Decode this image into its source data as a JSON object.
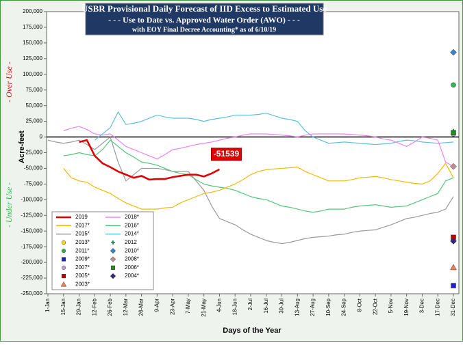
{
  "chart_data": {
    "type": "line",
    "title": [
      "USBR Provisional Daily Forecast of IID Excess to Estimated Use",
      "- - - Use to Date vs. Approved Water Order (AWO) - - -",
      "with EOY Final Decree Accounting* as of  6/10/19"
    ],
    "xlabel": "Days of the Year",
    "ylabel": "Acre-feet",
    "over_label": "- Over Use -",
    "under_label": "- Under Use -",
    "xlim": [
      0,
      364
    ],
    "ylim": [
      -250000,
      200000
    ],
    "xticks": [
      {
        "value": 0,
        "label": "1-Jan"
      },
      {
        "value": 14,
        "label": "15-Jan"
      },
      {
        "value": 28,
        "label": "29-Jan"
      },
      {
        "value": 42,
        "label": "12-Feb"
      },
      {
        "value": 56,
        "label": "26-Feb"
      },
      {
        "value": 70,
        "label": "12-Mar"
      },
      {
        "value": 84,
        "label": "26-Mar"
      },
      {
        "value": 98,
        "label": "9-Apr"
      },
      {
        "value": 112,
        "label": "23-Apr"
      },
      {
        "value": 126,
        "label": "7-May"
      },
      {
        "value": 140,
        "label": "21-May"
      },
      {
        "value": 154,
        "label": "4-Jun"
      },
      {
        "value": 168,
        "label": "18-Jun"
      },
      {
        "value": 182,
        "label": "2-Jul"
      },
      {
        "value": 196,
        "label": "16-Jul"
      },
      {
        "value": 210,
        "label": "30-Jul"
      },
      {
        "value": 224,
        "label": "13-Aug"
      },
      {
        "value": 238,
        "label": "27-Aug"
      },
      {
        "value": 252,
        "label": "10-Sep"
      },
      {
        "value": 266,
        "label": "24-Sep"
      },
      {
        "value": 280,
        "label": "8-Oct"
      },
      {
        "value": 294,
        "label": "22-Oct"
      },
      {
        "value": 308,
        "label": "5-Nov"
      },
      {
        "value": 322,
        "label": "19-Nov"
      },
      {
        "value": 336,
        "label": "3-Dec"
      },
      {
        "value": 350,
        "label": "17-Dec"
      },
      {
        "value": 364,
        "label": "31-Dec"
      }
    ],
    "yticks": [
      {
        "value": 200000,
        "label": "200,000"
      },
      {
        "value": 175000,
        "label": "175,000"
      },
      {
        "value": 150000,
        "label": "150,000"
      },
      {
        "value": 125000,
        "label": "125,000"
      },
      {
        "value": 100000,
        "label": "100,000"
      },
      {
        "value": 75000,
        "label": "75,000"
      },
      {
        "value": 50000,
        "label": "50,000"
      },
      {
        "value": 25000,
        "label": "25,000"
      },
      0,
      {
        "value": -25000,
        "label": "-25,000"
      },
      {
        "value": -50000,
        "label": "-50,000"
      },
      {
        "value": -75000,
        "label": "-75,000"
      },
      {
        "value": -100000,
        "label": "-100,000"
      },
      {
        "value": -125000,
        "label": "-125,000"
      },
      {
        "value": -150000,
        "label": "-150,000"
      },
      {
        "value": -175000,
        "label": "-175,000"
      },
      {
        "value": -200000,
        "label": "-200,000"
      },
      {
        "value": -225000,
        "label": "-225,000"
      },
      {
        "value": -250000,
        "label": "-250,000"
      }
    ],
    "x": [
      0,
      7,
      14,
      21,
      28,
      35,
      42,
      49,
      56,
      63,
      70,
      77,
      84,
      91,
      98,
      105,
      112,
      119,
      126,
      133,
      140,
      147,
      154,
      161,
      168,
      175,
      182,
      189,
      196,
      203,
      210,
      217,
      224,
      231,
      238,
      245,
      252,
      259,
      266,
      273,
      280,
      287,
      294,
      301,
      308,
      315,
      322,
      329,
      336,
      343,
      350,
      357,
      364
    ],
    "series": [
      {
        "name": "2019",
        "color": "#e00000",
        "values": [
          null,
          null,
          null,
          null,
          -8000,
          -5000,
          -30000,
          -42000,
          -48000,
          -55000,
          -60000,
          -65000,
          -62000,
          -68000,
          -67000,
          -67000,
          -64000,
          -62000,
          -60000,
          -60000,
          -63000,
          -58000,
          -51539,
          null,
          null,
          null,
          null,
          null,
          null,
          null,
          null,
          null,
          null,
          null,
          null,
          null,
          null,
          null,
          null,
          null,
          null,
          null,
          null,
          null,
          null,
          null,
          null,
          null,
          null,
          null,
          null,
          null,
          null
        ]
      },
      {
        "name": "2018*",
        "color": "#ee82ee",
        "values": [
          null,
          null,
          10000,
          14000,
          17000,
          12000,
          5000,
          3000,
          5000,
          -5000,
          -15000,
          -20000,
          -25000,
          -30000,
          -35000,
          -28000,
          -20000,
          -18000,
          -15000,
          -12000,
          -10000,
          -8000,
          -5000,
          -2000,
          0,
          3000,
          5000,
          5000,
          5000,
          4000,
          3000,
          2000,
          0,
          3000,
          5000,
          5000,
          5000,
          5000,
          5000,
          4000,
          3000,
          2000,
          0,
          -3000,
          -5000,
          -10000,
          -15000,
          -8000,
          0,
          -2000,
          -5000,
          -40000,
          -47000
        ]
      },
      {
        "name": "2017*",
        "color": "#f5b800",
        "values": [
          null,
          null,
          -50000,
          -65000,
          -70000,
          -72000,
          -80000,
          -85000,
          -90000,
          -98000,
          -105000,
          -110000,
          -115000,
          -115000,
          -115000,
          -113000,
          -112000,
          -105000,
          -100000,
          -95000,
          -90000,
          -88000,
          -85000,
          -80000,
          -75000,
          -68000,
          -60000,
          -55000,
          -52000,
          -51000,
          -50000,
          -49000,
          -48000,
          -55000,
          -60000,
          -65000,
          -70000,
          -70000,
          -70000,
          -68000,
          -65000,
          -64000,
          -63000,
          -65000,
          -68000,
          -70000,
          -72000,
          -74000,
          -75000,
          -70000,
          -58000,
          -42000,
          -65000
        ]
      },
      {
        "name": "2016*",
        "color": "#55c57a",
        "values": [
          null,
          null,
          -30000,
          -28000,
          -25000,
          -28000,
          -30000,
          -20000,
          -5000,
          -15000,
          -25000,
          -32000,
          -40000,
          -42000,
          -45000,
          -50000,
          -55000,
          -58000,
          -60000,
          -68000,
          -75000,
          -78000,
          -80000,
          -82000,
          -85000,
          -90000,
          -95000,
          -98000,
          -100000,
          -105000,
          -110000,
          -112000,
          -115000,
          -118000,
          -120000,
          -118000,
          -115000,
          -115000,
          -115000,
          -112000,
          -110000,
          -109000,
          -108000,
          -110000,
          -112000,
          -111000,
          -110000,
          -105000,
          -100000,
          -95000,
          -90000,
          -70000,
          -65000
        ]
      },
      {
        "name": "2015*",
        "color": "#9a9a9a",
        "values": [
          -5000,
          -8000,
          -10000,
          -8000,
          -5000,
          -12000,
          -20000,
          -10000,
          0,
          -40000,
          -70000,
          -60000,
          -50000,
          -50000,
          -50000,
          -52000,
          -55000,
          -55000,
          -55000,
          -70000,
          -85000,
          -110000,
          -130000,
          -135000,
          -140000,
          -148000,
          -155000,
          -160000,
          -165000,
          -168000,
          -170000,
          -168000,
          -165000,
          -162000,
          -160000,
          -159000,
          -158000,
          -156000,
          -155000,
          -152000,
          -150000,
          -149000,
          -148000,
          -144000,
          -140000,
          -135000,
          -130000,
          -128000,
          -125000,
          -122000,
          -120000,
          -115000,
          -95000
        ]
      },
      {
        "name": "2014*",
        "color": "#5bc0de",
        "values": [
          null,
          null,
          null,
          null,
          null,
          null,
          -5000,
          5000,
          15000,
          40000,
          20000,
          22000,
          25000,
          30000,
          35000,
          32000,
          30000,
          30000,
          30000,
          28000,
          25000,
          28000,
          30000,
          32000,
          35000,
          35000,
          35000,
          36000,
          38000,
          34000,
          30000,
          28000,
          25000,
          10000,
          0,
          -5000,
          -10000,
          -9000,
          -8000,
          -9000,
          -10000,
          -11000,
          -12000,
          -11000,
          -10000,
          -7000,
          -5000,
          -6000,
          -8000,
          -9000,
          -10000,
          -9000,
          -8000
        ]
      }
    ],
    "marker_x": 364,
    "markers": [
      {
        "name": "2013*",
        "shape": "circle",
        "color": "#ffd700",
        "value": 5000
      },
      {
        "name": "2012",
        "shape": "plus",
        "color": "#2e8b57",
        "value": 9000
      },
      {
        "name": "2011*",
        "shape": "circle",
        "color": "#2db84d",
        "value": 83000
      },
      {
        "name": "2010*",
        "shape": "diamond",
        "color": "#3a7fd5",
        "value": 135000
      },
      {
        "name": "2009*",
        "shape": "square",
        "color": "#2020d0",
        "value": -237000
      },
      {
        "name": "2008*",
        "shape": "diamond",
        "color": "#c09090",
        "value": -47000
      },
      {
        "name": "2007*",
        "shape": "circle",
        "color": "#c0a0e0",
        "value": 5000
      },
      {
        "name": "2006*",
        "shape": "square",
        "color": "#228b22",
        "value": 7000
      },
      {
        "name": "2005*",
        "shape": "square",
        "color": "#c00000",
        "value": -160000
      },
      {
        "name": "2004*",
        "shape": "diamond",
        "color": "#2a2a80",
        "value": -166000
      },
      {
        "name": "2003*",
        "shape": "triangle",
        "color": "#f08050",
        "value": -208000
      }
    ]
  }
}
